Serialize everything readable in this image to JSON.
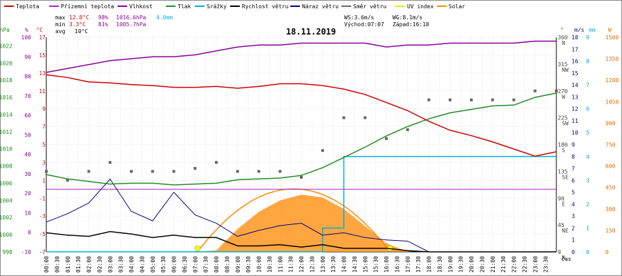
{
  "chart_data": {
    "type": "line",
    "title": "18.11.2019",
    "xlabel": "čas",
    "legend": [
      {
        "name": "Teplota",
        "color": "#cc0000"
      },
      {
        "name": "Přízemní teplota",
        "color": "#aa22cc"
      },
      {
        "name": "Vlhkost",
        "color": "#880099"
      },
      {
        "name": "Tlak",
        "color": "#228b22"
      },
      {
        "name": "Srážky",
        "color": "#00b0d8"
      },
      {
        "name": "Rychlost větru",
        "color": "#000000"
      },
      {
        "name": "Náraz větru",
        "color": "#000080"
      },
      {
        "name": "Směr větru",
        "color": "#666666"
      },
      {
        "name": "UV index",
        "color": "#e8e800"
      },
      {
        "name": "Solar",
        "color": "#ff8800"
      }
    ],
    "stats": {
      "max_label": "max",
      "max_temp": "12.8°C",
      "max_hum": "98%",
      "max_press": "1016.6hPa",
      "max_rain": "4.0mm",
      "min_label": "min",
      "min_temp": "3.3°C",
      "min_hum": "81%",
      "min_press": "1005.7hPa",
      "avg_label": "avg",
      "avg_temp": "10°C",
      "ws": "WS:3.6m/s",
      "wg": "WG:8.1m/s",
      "sunrise": "Východ:07:07",
      "sunset": "Západ:16:10"
    },
    "units": {
      "hpa": "hPa",
      "pct": "%",
      "c": "°C",
      "dir": "°",
      "mm": "mm",
      "ms": "m/s",
      "w": "W"
    },
    "x_ticks": [
      "00:00",
      "00:30",
      "01:00",
      "01:30",
      "02:00",
      "02:30",
      "03:00",
      "03:30",
      "04:00",
      "04:30",
      "05:00",
      "05:30",
      "06:00",
      "06:30",
      "07:00",
      "07:30",
      "08:00",
      "08:30",
      "09:00",
      "09:30",
      "10:00",
      "10:30",
      "11:00",
      "11:30",
      "12:00",
      "12:30",
      "13:00",
      "13:30",
      "14:00",
      "14:30",
      "15:00",
      "15:30",
      "16:00",
      "16:30",
      "17:00",
      "17:30",
      "18:00",
      "18:30",
      "19:00",
      "19:30",
      "20:00",
      "20:30",
      "21:00",
      "21:30",
      "22:00",
      "22:30",
      "23:00",
      "23:30"
    ],
    "axes": {
      "pressure": {
        "unit": "hPa",
        "ticks": [
          998,
          1000,
          1002,
          1004,
          1006,
          1008,
          1010,
          1012,
          1014,
          1016,
          1018,
          1020,
          1022
        ]
      },
      "humidity": {
        "unit": "%",
        "ticks": [
          -10,
          0,
          10,
          20,
          30,
          40,
          50,
          60,
          70,
          80,
          90,
          100
        ]
      },
      "temperature": {
        "unit": "°C",
        "ticks": [
          -7,
          -5,
          -3,
          -1,
          1,
          3,
          5,
          7,
          9,
          11,
          13,
          15,
          17
        ]
      },
      "direction": {
        "unit": "°",
        "ticks": [
          0,
          45,
          90,
          135,
          180,
          225,
          270,
          315,
          360
        ],
        "labels": [
          "N",
          "NE",
          "E",
          "SE",
          "S",
          "SW",
          "W",
          "NW",
          "N"
        ]
      },
      "rain": {
        "unit": "mm",
        "ticks": [
          0,
          1,
          2,
          3,
          4,
          5,
          6,
          7,
          8,
          9
        ]
      },
      "wind": {
        "unit": "m/s",
        "ticks": [
          0,
          1,
          2,
          3,
          4,
          5,
          6,
          7,
          8,
          9,
          10,
          11,
          12,
          13,
          14,
          15,
          16,
          17,
          18
        ]
      },
      "solar": {
        "unit": "W",
        "ticks": [
          0,
          150,
          300,
          450,
          600,
          750,
          900,
          1050,
          1200,
          1350,
          1500
        ]
      }
    },
    "hours": [
      0,
      1,
      2,
      3,
      4,
      5,
      6,
      7,
      8,
      9,
      10,
      11,
      12,
      13,
      14,
      15,
      16,
      17,
      18,
      19,
      20,
      21,
      22,
      23,
      24
    ],
    "series": [
      {
        "name": "Teplota",
        "unit": "°C",
        "values": [
          12.8,
          12.5,
          12.0,
          11.9,
          11.7,
          11.6,
          11.4,
          11.4,
          11.5,
          11.3,
          11.5,
          11.8,
          11.8,
          11.6,
          11.2,
          10.6,
          9.7,
          8.8,
          7.6,
          6.6,
          6.0,
          5.3,
          4.5,
          3.7,
          4.2
        ]
      },
      {
        "name": "Přízemní teplota",
        "unit": "°C",
        "values": [
          0.0,
          0.0,
          0.0,
          0.0,
          0.0,
          0.0,
          0.0,
          0.0,
          0.0,
          0.0,
          0.0,
          0.0,
          0.0,
          0.0,
          0.0,
          0.0,
          0.0,
          0.0,
          0.0,
          0.0,
          0.0,
          0.0,
          0.0,
          0.0,
          0.0
        ]
      },
      {
        "name": "Vlhkost",
        "unit": "%",
        "values": [
          82,
          84,
          86,
          88,
          89,
          90,
          90,
          91,
          93,
          95,
          96,
          96,
          97,
          97,
          97,
          97,
          95,
          96,
          96,
          97,
          97,
          97,
          97,
          98,
          98
        ]
      },
      {
        "name": "Tlak",
        "unit": "hPa",
        "values": [
          1007.0,
          1006.5,
          1006.2,
          1005.9,
          1006.0,
          1006.0,
          1005.8,
          1005.9,
          1006.0,
          1006.4,
          1006.5,
          1006.6,
          1006.9,
          1007.8,
          1009.0,
          1010.2,
          1011.5,
          1012.6,
          1013.5,
          1014.2,
          1014.6,
          1015.0,
          1015.1,
          1016.0,
          1016.5
        ]
      },
      {
        "name": "Srážky",
        "unit": "mm",
        "values": [
          0,
          0,
          0,
          0,
          0,
          0,
          0,
          0,
          0,
          0,
          0,
          0,
          0,
          1.0,
          4.0,
          4.0,
          4.0,
          4.0,
          4.0,
          4.0,
          4.0,
          4.0,
          4.0,
          4.0,
          4.0
        ]
      },
      {
        "name": "Rychlost větru",
        "unit": "m/s",
        "values": [
          1.6,
          1.4,
          1.3,
          1.7,
          1.5,
          1.2,
          1.4,
          1.2,
          1.2,
          0.5,
          0.5,
          0.6,
          0.4,
          0.6,
          0.3,
          0.3,
          0.3,
          0.1,
          0,
          0,
          0,
          0,
          0,
          0,
          0
        ]
      },
      {
        "name": "Náraz větru",
        "unit": "m/s",
        "values": [
          2.5,
          3.2,
          4.1,
          6.1,
          3.4,
          2.6,
          5.0,
          3.1,
          2.4,
          1.3,
          1.8,
          2.2,
          2.4,
          1.4,
          1.6,
          1.2,
          1.0,
          0.9,
          0,
          0,
          0,
          0,
          0,
          0,
          0
        ]
      },
      {
        "name": "Směr větru",
        "unit": "°",
        "values": [
          135,
          120,
          135,
          150,
          135,
          135,
          135,
          140,
          150,
          135,
          135,
          135,
          125,
          170,
          225,
          225,
          190,
          205,
          255,
          255,
          255,
          255,
          255,
          270,
          270
        ]
      },
      {
        "name": "Solar",
        "unit": "W",
        "values": [
          0,
          0,
          0,
          0,
          0,
          0,
          0,
          0,
          10,
          160,
          280,
          360,
          400,
          380,
          300,
          180,
          60,
          0,
          0,
          0,
          0,
          0,
          0,
          0,
          0
        ]
      }
    ],
    "sun": {
      "sunrise_hour": 7.12,
      "sunset_hour": 16.17,
      "peak_w": 440
    }
  }
}
